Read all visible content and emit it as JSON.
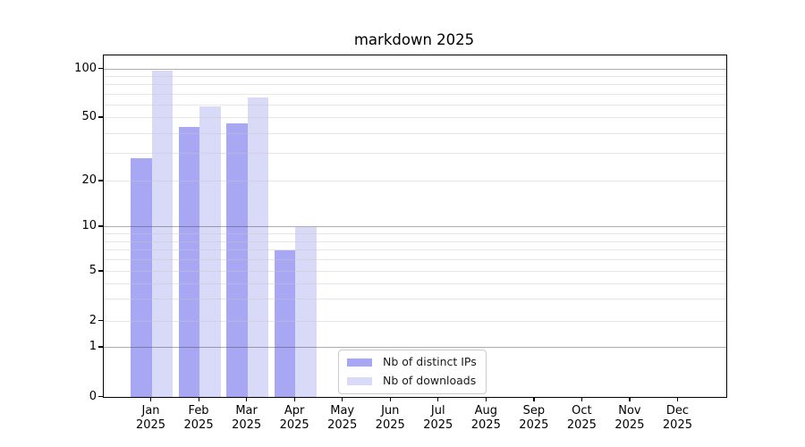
{
  "chart_data": {
    "type": "bar",
    "title": "markdown 2025",
    "categories": [
      "Jan",
      "Feb",
      "Mar",
      "Apr",
      "May",
      "Jun",
      "Jul",
      "Aug",
      "Sep",
      "Oct",
      "Nov",
      "Dec"
    ],
    "x_year_label": "2025",
    "series": [
      {
        "name": "Nb of distinct IPs",
        "color": "#a7a7f3",
        "values": [
          28,
          44,
          46,
          7,
          0,
          0,
          0,
          0,
          0,
          0,
          0,
          0
        ]
      },
      {
        "name": "Nb of downloads",
        "color": "#d9d9f8",
        "values": [
          97,
          59,
          67,
          10,
          0,
          0,
          0,
          0,
          0,
          0,
          0,
          0
        ]
      }
    ],
    "yaxis": {
      "scale": "symlog",
      "tick_values": [
        0,
        1,
        2,
        5,
        10,
        20,
        50,
        100
      ],
      "tick_labels": [
        "0",
        "1",
        "2",
        "5",
        "10",
        "20",
        "50",
        "100"
      ],
      "anchors": [
        [
          0,
          0.0
        ],
        [
          1,
          0.144
        ],
        [
          2,
          0.2225
        ],
        [
          5,
          0.3665
        ],
        [
          10,
          0.4974
        ],
        [
          20,
          0.6309
        ],
        [
          50,
          0.8168
        ],
        [
          100,
          0.9607
        ]
      ],
      "major_gridlines": [
        1,
        10,
        100
      ],
      "minor_gridlines": [
        2,
        3,
        4,
        5,
        6,
        7,
        8,
        9,
        20,
        30,
        40,
        50,
        60,
        70,
        80,
        90
      ]
    },
    "xaxis": {
      "n_categories": 12,
      "bar_width_fraction": 0.44
    },
    "legend": {
      "position": "lower-center",
      "entries": [
        "Nb of distinct IPs",
        "Nb of downloads"
      ]
    },
    "colors": {
      "major_grid": "#b1b1b1",
      "minor_grid": "#e8e8e8",
      "spine": "#000000",
      "background": "#ffffff"
    }
  }
}
